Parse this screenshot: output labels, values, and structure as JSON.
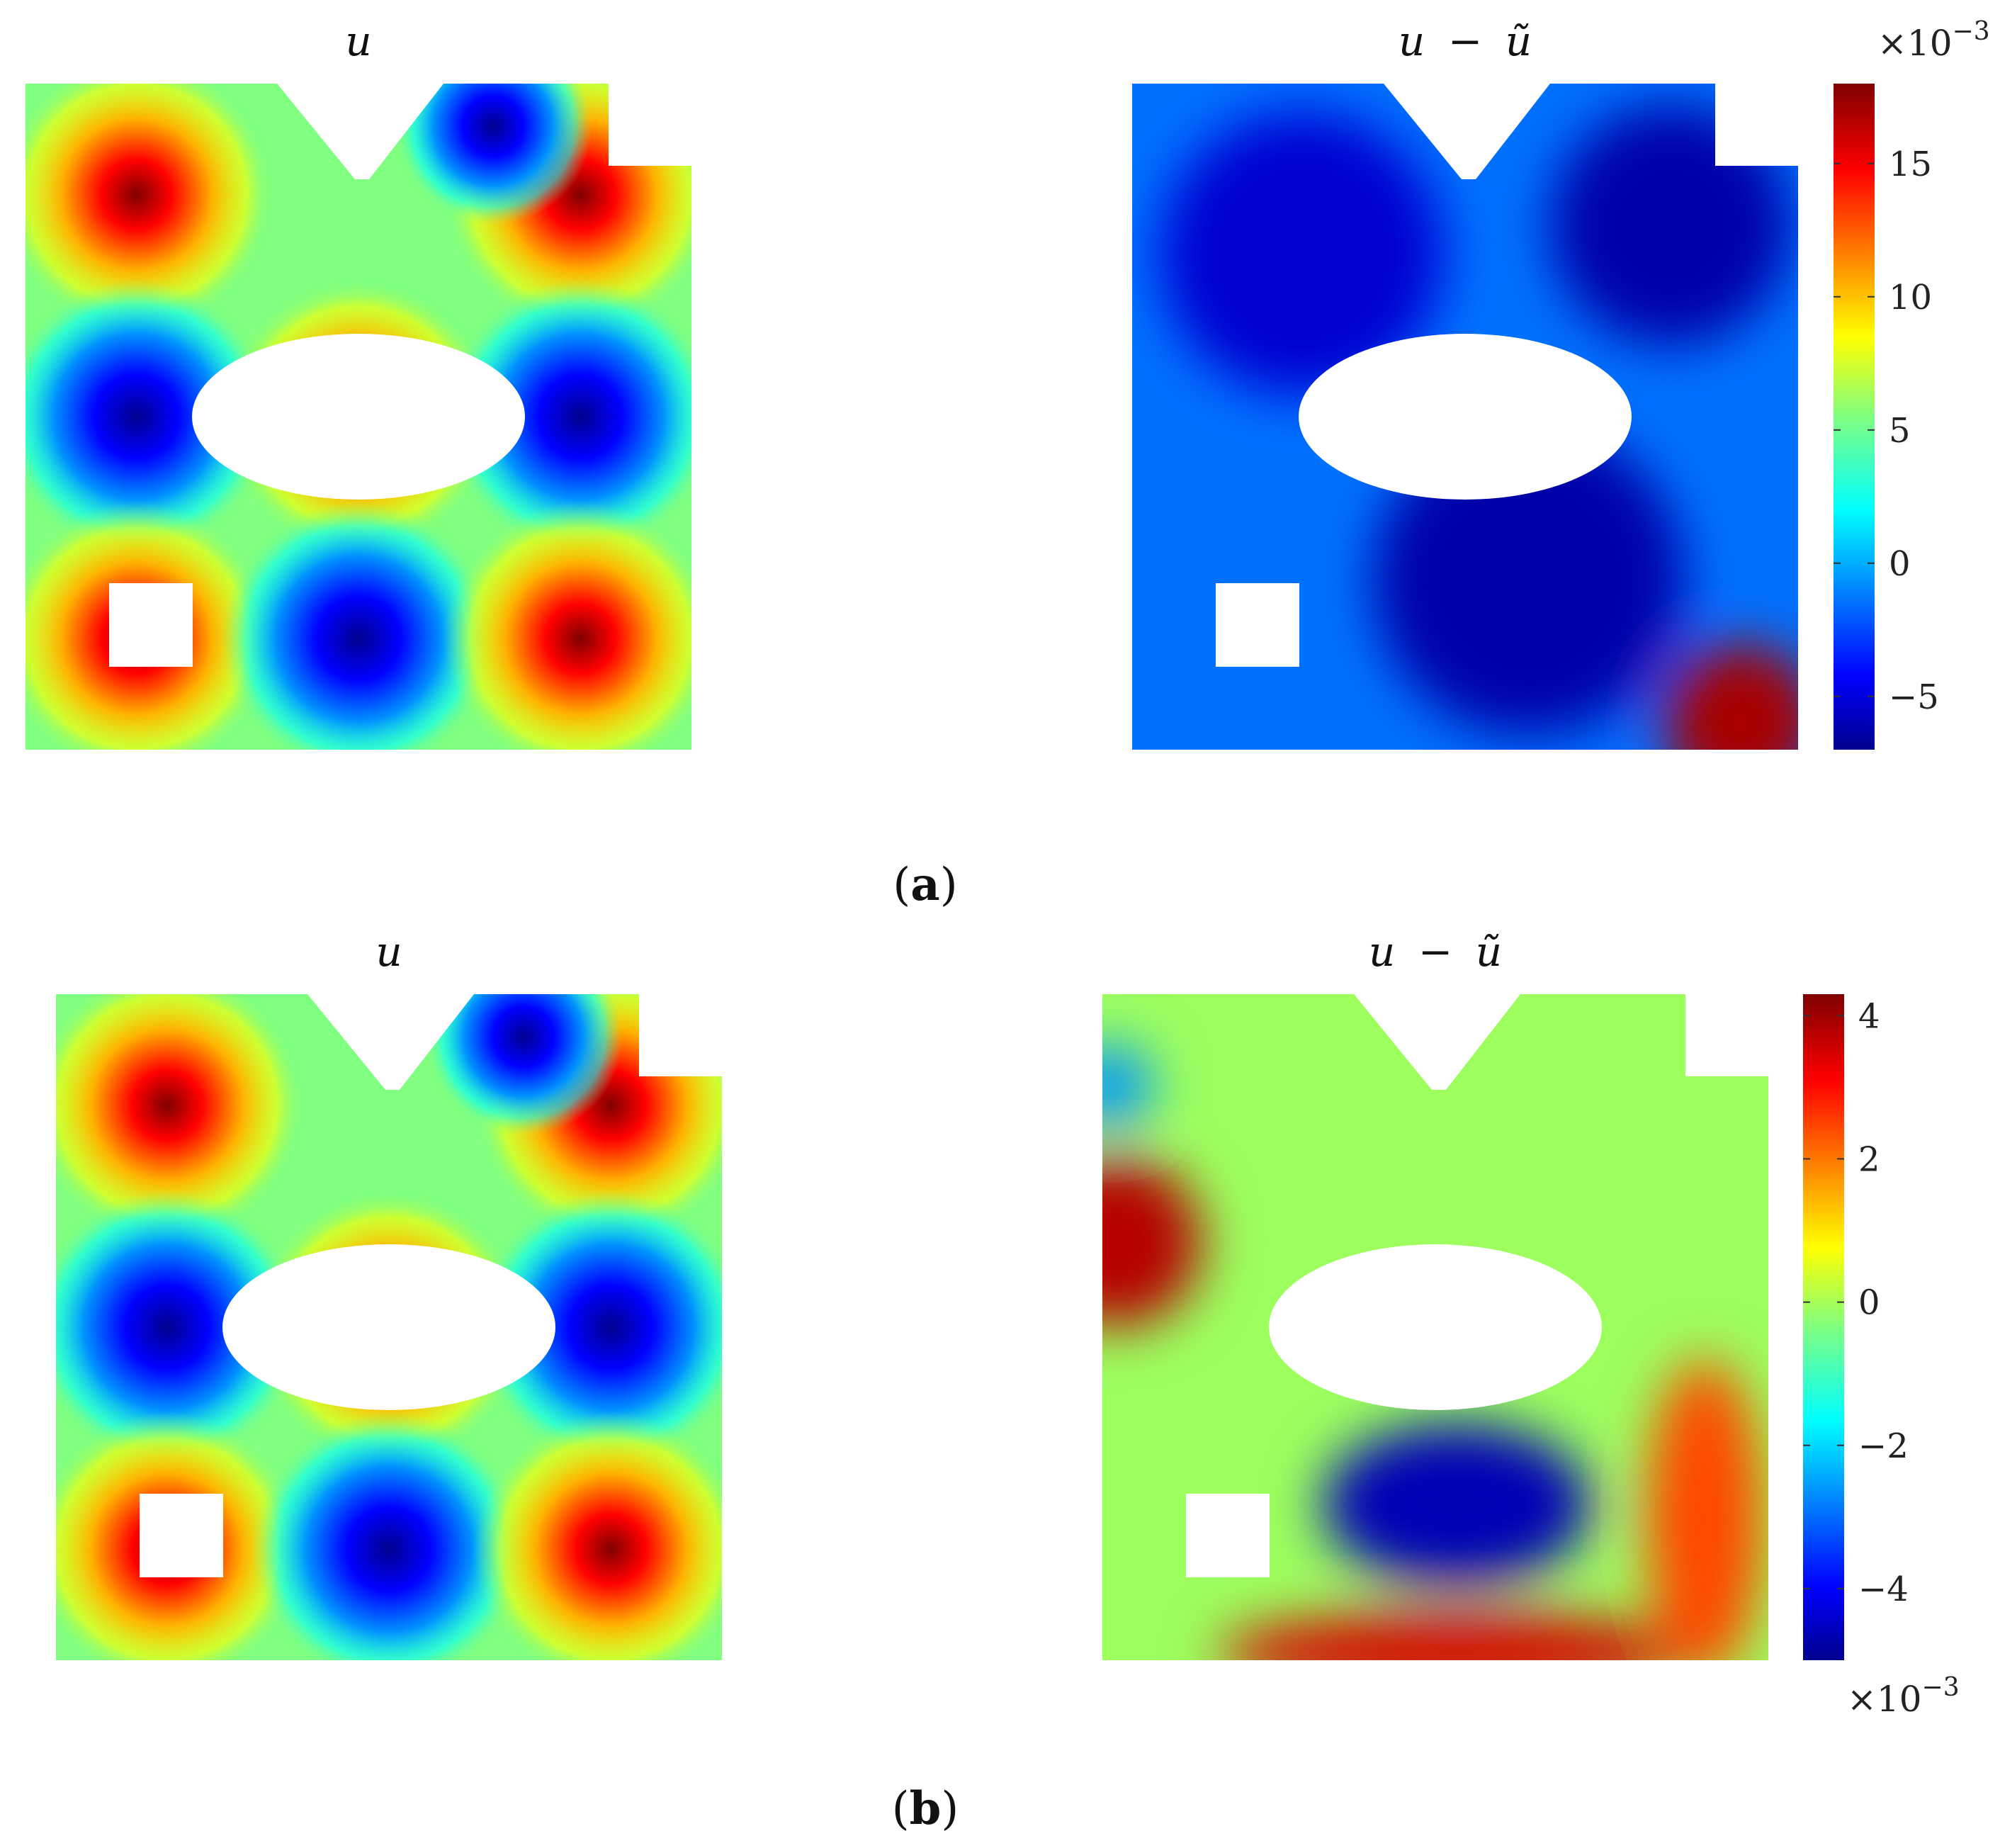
{
  "figure": {
    "panels": [
      {
        "label_open": "(",
        "label": "a",
        "label_close": ")",
        "left_plot_title": "u",
        "right_plot_title_lhs": "u",
        "right_plot_title_op": "−",
        "right_plot_title_rhs": "ũ",
        "colorbar_multiplier_base": "×10",
        "colorbar_multiplier_exp": "−3",
        "colorbar_multiplier_position": "top",
        "colorbar_ticks": [
          "15",
          "10",
          "5",
          "0",
          "−5"
        ]
      },
      {
        "label_open": "(",
        "label": "b",
        "label_close": ")",
        "left_plot_title": "u",
        "right_plot_title_lhs": "u",
        "right_plot_title_op": "−",
        "right_plot_title_rhs": "ũ",
        "colorbar_multiplier_base": "×10",
        "colorbar_multiplier_exp": "−3",
        "colorbar_multiplier_position": "bottom",
        "colorbar_ticks": [
          "4",
          "2",
          "0",
          "−2",
          "−4"
        ]
      }
    ]
  },
  "chart_data": [
    {
      "type": "heatmap",
      "panel": "a",
      "plot": "left",
      "title": "u",
      "colormap": "jet",
      "field_description_cells": [
        [
          "+",
          "",
          "+"
        ],
        [
          "−",
          "+",
          "−"
        ],
        [
          "+",
          "−",
          "+"
        ]
      ],
      "domain_holes": [
        "ellipse-center",
        "square-bottom-left",
        "v-notch-top",
        "step-top-right"
      ],
      "colorbar": false
    },
    {
      "type": "heatmap",
      "panel": "a",
      "plot": "right",
      "title": "u − ũ",
      "colormap": "jet",
      "colorbar": true,
      "colorbar_range": [
        -7,
        18
      ],
      "colorbar_ticks": [
        15,
        10,
        5,
        0,
        -5
      ],
      "colorbar_scale": "×10^-3",
      "features": [
        {
          "region": "background",
          "value": -2
        },
        {
          "region": "upper-left",
          "value": -5
        },
        {
          "region": "upper-right",
          "value": -6
        },
        {
          "region": "lower-center",
          "value": -6
        },
        {
          "region": "bottom-right-corner",
          "value": 17
        }
      ]
    },
    {
      "type": "heatmap",
      "panel": "b",
      "plot": "left",
      "title": "u",
      "colormap": "jet",
      "field_description_cells": [
        [
          "+",
          "",
          "+"
        ],
        [
          "−",
          "+",
          "−"
        ],
        [
          "+",
          "−",
          "+"
        ]
      ],
      "domain_holes": [
        "ellipse-center",
        "square-bottom-left",
        "v-notch-top",
        "step-top-right"
      ],
      "colorbar": false
    },
    {
      "type": "heatmap",
      "panel": "b",
      "plot": "right",
      "title": "u − ũ",
      "colormap": "jet",
      "colorbar": true,
      "colorbar_range": [
        -5,
        4.3
      ],
      "colorbar_ticks": [
        4,
        2,
        0,
        -2,
        -4
      ],
      "colorbar_scale": "×10^-3",
      "features": [
        {
          "region": "background",
          "value": 0.3
        },
        {
          "region": "left-edge-middle",
          "value": 3.8
        },
        {
          "region": "left-edge-top",
          "value": -2.5
        },
        {
          "region": "below-ellipse",
          "value": -4.5
        },
        {
          "region": "bottom-edge",
          "value": 3.5
        },
        {
          "region": "right-lower",
          "value": 2.5
        }
      ]
    }
  ]
}
